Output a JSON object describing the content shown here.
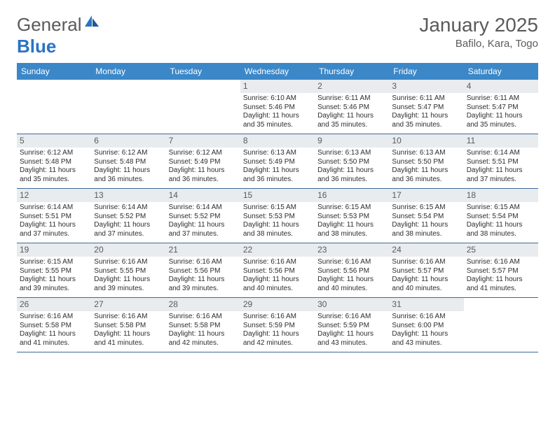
{
  "logo": {
    "text1": "General",
    "text2": "Blue"
  },
  "title": "January 2025",
  "location": "Bafilo, Kara, Togo",
  "header_bg": "#3b87c8",
  "header_fg": "#ffffff",
  "daynum_bg": "#e8ecef",
  "text_color": "#5a5a5a",
  "dayHeaders": [
    "Sunday",
    "Monday",
    "Tuesday",
    "Wednesday",
    "Thursday",
    "Friday",
    "Saturday"
  ],
  "weeks": [
    [
      {
        "n": "",
        "sr": "",
        "ss": "",
        "dl": ""
      },
      {
        "n": "",
        "sr": "",
        "ss": "",
        "dl": ""
      },
      {
        "n": "",
        "sr": "",
        "ss": "",
        "dl": ""
      },
      {
        "n": "1",
        "sr": "Sunrise: 6:10 AM",
        "ss": "Sunset: 5:46 PM",
        "dl": "Daylight: 11 hours and 35 minutes."
      },
      {
        "n": "2",
        "sr": "Sunrise: 6:11 AM",
        "ss": "Sunset: 5:46 PM",
        "dl": "Daylight: 11 hours and 35 minutes."
      },
      {
        "n": "3",
        "sr": "Sunrise: 6:11 AM",
        "ss": "Sunset: 5:47 PM",
        "dl": "Daylight: 11 hours and 35 minutes."
      },
      {
        "n": "4",
        "sr": "Sunrise: 6:11 AM",
        "ss": "Sunset: 5:47 PM",
        "dl": "Daylight: 11 hours and 35 minutes."
      }
    ],
    [
      {
        "n": "5",
        "sr": "Sunrise: 6:12 AM",
        "ss": "Sunset: 5:48 PM",
        "dl": "Daylight: 11 hours and 35 minutes."
      },
      {
        "n": "6",
        "sr": "Sunrise: 6:12 AM",
        "ss": "Sunset: 5:48 PM",
        "dl": "Daylight: 11 hours and 36 minutes."
      },
      {
        "n": "7",
        "sr": "Sunrise: 6:12 AM",
        "ss": "Sunset: 5:49 PM",
        "dl": "Daylight: 11 hours and 36 minutes."
      },
      {
        "n": "8",
        "sr": "Sunrise: 6:13 AM",
        "ss": "Sunset: 5:49 PM",
        "dl": "Daylight: 11 hours and 36 minutes."
      },
      {
        "n": "9",
        "sr": "Sunrise: 6:13 AM",
        "ss": "Sunset: 5:50 PM",
        "dl": "Daylight: 11 hours and 36 minutes."
      },
      {
        "n": "10",
        "sr": "Sunrise: 6:13 AM",
        "ss": "Sunset: 5:50 PM",
        "dl": "Daylight: 11 hours and 36 minutes."
      },
      {
        "n": "11",
        "sr": "Sunrise: 6:14 AM",
        "ss": "Sunset: 5:51 PM",
        "dl": "Daylight: 11 hours and 37 minutes."
      }
    ],
    [
      {
        "n": "12",
        "sr": "Sunrise: 6:14 AM",
        "ss": "Sunset: 5:51 PM",
        "dl": "Daylight: 11 hours and 37 minutes."
      },
      {
        "n": "13",
        "sr": "Sunrise: 6:14 AM",
        "ss": "Sunset: 5:52 PM",
        "dl": "Daylight: 11 hours and 37 minutes."
      },
      {
        "n": "14",
        "sr": "Sunrise: 6:14 AM",
        "ss": "Sunset: 5:52 PM",
        "dl": "Daylight: 11 hours and 37 minutes."
      },
      {
        "n": "15",
        "sr": "Sunrise: 6:15 AM",
        "ss": "Sunset: 5:53 PM",
        "dl": "Daylight: 11 hours and 38 minutes."
      },
      {
        "n": "16",
        "sr": "Sunrise: 6:15 AM",
        "ss": "Sunset: 5:53 PM",
        "dl": "Daylight: 11 hours and 38 minutes."
      },
      {
        "n": "17",
        "sr": "Sunrise: 6:15 AM",
        "ss": "Sunset: 5:54 PM",
        "dl": "Daylight: 11 hours and 38 minutes."
      },
      {
        "n": "18",
        "sr": "Sunrise: 6:15 AM",
        "ss": "Sunset: 5:54 PM",
        "dl": "Daylight: 11 hours and 38 minutes."
      }
    ],
    [
      {
        "n": "19",
        "sr": "Sunrise: 6:15 AM",
        "ss": "Sunset: 5:55 PM",
        "dl": "Daylight: 11 hours and 39 minutes."
      },
      {
        "n": "20",
        "sr": "Sunrise: 6:16 AM",
        "ss": "Sunset: 5:55 PM",
        "dl": "Daylight: 11 hours and 39 minutes."
      },
      {
        "n": "21",
        "sr": "Sunrise: 6:16 AM",
        "ss": "Sunset: 5:56 PM",
        "dl": "Daylight: 11 hours and 39 minutes."
      },
      {
        "n": "22",
        "sr": "Sunrise: 6:16 AM",
        "ss": "Sunset: 5:56 PM",
        "dl": "Daylight: 11 hours and 40 minutes."
      },
      {
        "n": "23",
        "sr": "Sunrise: 6:16 AM",
        "ss": "Sunset: 5:56 PM",
        "dl": "Daylight: 11 hours and 40 minutes."
      },
      {
        "n": "24",
        "sr": "Sunrise: 6:16 AM",
        "ss": "Sunset: 5:57 PM",
        "dl": "Daylight: 11 hours and 40 minutes."
      },
      {
        "n": "25",
        "sr": "Sunrise: 6:16 AM",
        "ss": "Sunset: 5:57 PM",
        "dl": "Daylight: 11 hours and 41 minutes."
      }
    ],
    [
      {
        "n": "26",
        "sr": "Sunrise: 6:16 AM",
        "ss": "Sunset: 5:58 PM",
        "dl": "Daylight: 11 hours and 41 minutes."
      },
      {
        "n": "27",
        "sr": "Sunrise: 6:16 AM",
        "ss": "Sunset: 5:58 PM",
        "dl": "Daylight: 11 hours and 41 minutes."
      },
      {
        "n": "28",
        "sr": "Sunrise: 6:16 AM",
        "ss": "Sunset: 5:58 PM",
        "dl": "Daylight: 11 hours and 42 minutes."
      },
      {
        "n": "29",
        "sr": "Sunrise: 6:16 AM",
        "ss": "Sunset: 5:59 PM",
        "dl": "Daylight: 11 hours and 42 minutes."
      },
      {
        "n": "30",
        "sr": "Sunrise: 6:16 AM",
        "ss": "Sunset: 5:59 PM",
        "dl": "Daylight: 11 hours and 43 minutes."
      },
      {
        "n": "31",
        "sr": "Sunrise: 6:16 AM",
        "ss": "Sunset: 6:00 PM",
        "dl": "Daylight: 11 hours and 43 minutes."
      },
      {
        "n": "",
        "sr": "",
        "ss": "",
        "dl": ""
      }
    ]
  ]
}
